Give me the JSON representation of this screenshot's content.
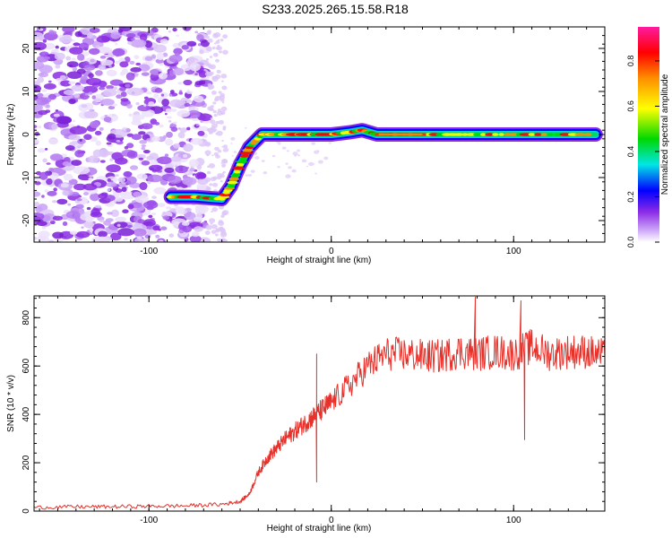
{
  "title": "S233.2025.265.15.58.R18",
  "chart_data": [
    {
      "type": "heatmap",
      "xlabel": "Height of straight line (km)",
      "ylabel": "Frequency (Hz)",
      "xlim": [
        -163,
        150
      ],
      "ylim": [
        -25,
        25
      ],
      "xticks": [
        -100,
        0,
        100
      ],
      "xtick_labels": [
        "-100",
        "0",
        "100"
      ],
      "yticks": [
        -20,
        -10,
        0,
        10,
        20
      ],
      "ytick_labels": [
        "-20",
        "-10",
        "0",
        "10",
        "20"
      ],
      "ridge_track": {
        "x": [
          -88,
          -75,
          -60,
          -55,
          -50,
          -45,
          -38,
          -30,
          -20,
          -10,
          0,
          10,
          17,
          25,
          40,
          60,
          80,
          100,
          120,
          145
        ],
        "y": [
          -14.5,
          -14.5,
          -15,
          -12,
          -7,
          -3,
          0,
          0,
          0,
          0,
          0,
          0.5,
          1,
          0,
          0,
          0,
          0,
          0,
          0,
          0
        ]
      },
      "colorbar": {
        "label": "Normalized spectral amplitude",
        "range": [
          0,
          0.95
        ],
        "ticks": [
          0.0,
          0.2,
          0.4,
          0.6,
          0.8
        ],
        "tick_labels": [
          "0.0",
          "0.2",
          "0.4",
          "0.6",
          "0.8"
        ],
        "colors": [
          "#ffffff",
          "#c9a0f7",
          "#8c2be6",
          "#0000ff",
          "#00e6e6",
          "#00d800",
          "#ffff00",
          "#ff9000",
          "#ff0000",
          "#ff1aa0"
        ]
      }
    },
    {
      "type": "line",
      "xlabel": "Height of straight line (km)",
      "ylabel": "SNR (10 * v/v)",
      "xlim": [
        -163,
        150
      ],
      "ylim": [
        0,
        890
      ],
      "xticks": [
        -100,
        0,
        100
      ],
      "xtick_labels": [
        "-100",
        "0",
        "100"
      ],
      "yticks": [
        0,
        200,
        400,
        600,
        800
      ],
      "ytick_labels": [
        "0",
        "200",
        "400",
        "600",
        "800"
      ],
      "series": [
        {
          "name": "SNR",
          "color": "#e8312a",
          "x": [
            -163,
            -140,
            -120,
            -100,
            -80,
            -60,
            -50,
            -45,
            -40,
            -35,
            -30,
            -25,
            -20,
            -15,
            -10,
            -5,
            0,
            10,
            20,
            30,
            40,
            50,
            60,
            70,
            80,
            90,
            100,
            110,
            120,
            130,
            140,
            150
          ],
          "y": [
            15,
            18,
            18,
            20,
            22,
            28,
            40,
            70,
            160,
            220,
            260,
            300,
            330,
            360,
            390,
            420,
            450,
            520,
            600,
            650,
            650,
            640,
            640,
            660,
            650,
            660,
            650,
            680,
            650,
            660,
            660,
            640
          ]
        }
      ],
      "spikes": [
        {
          "x": -8,
          "y": 650
        },
        {
          "x": -8,
          "y": 120
        },
        {
          "x": 106,
          "y": 295
        },
        {
          "x": 79,
          "y": 885
        },
        {
          "x": 104,
          "y": 870
        }
      ]
    }
  ]
}
